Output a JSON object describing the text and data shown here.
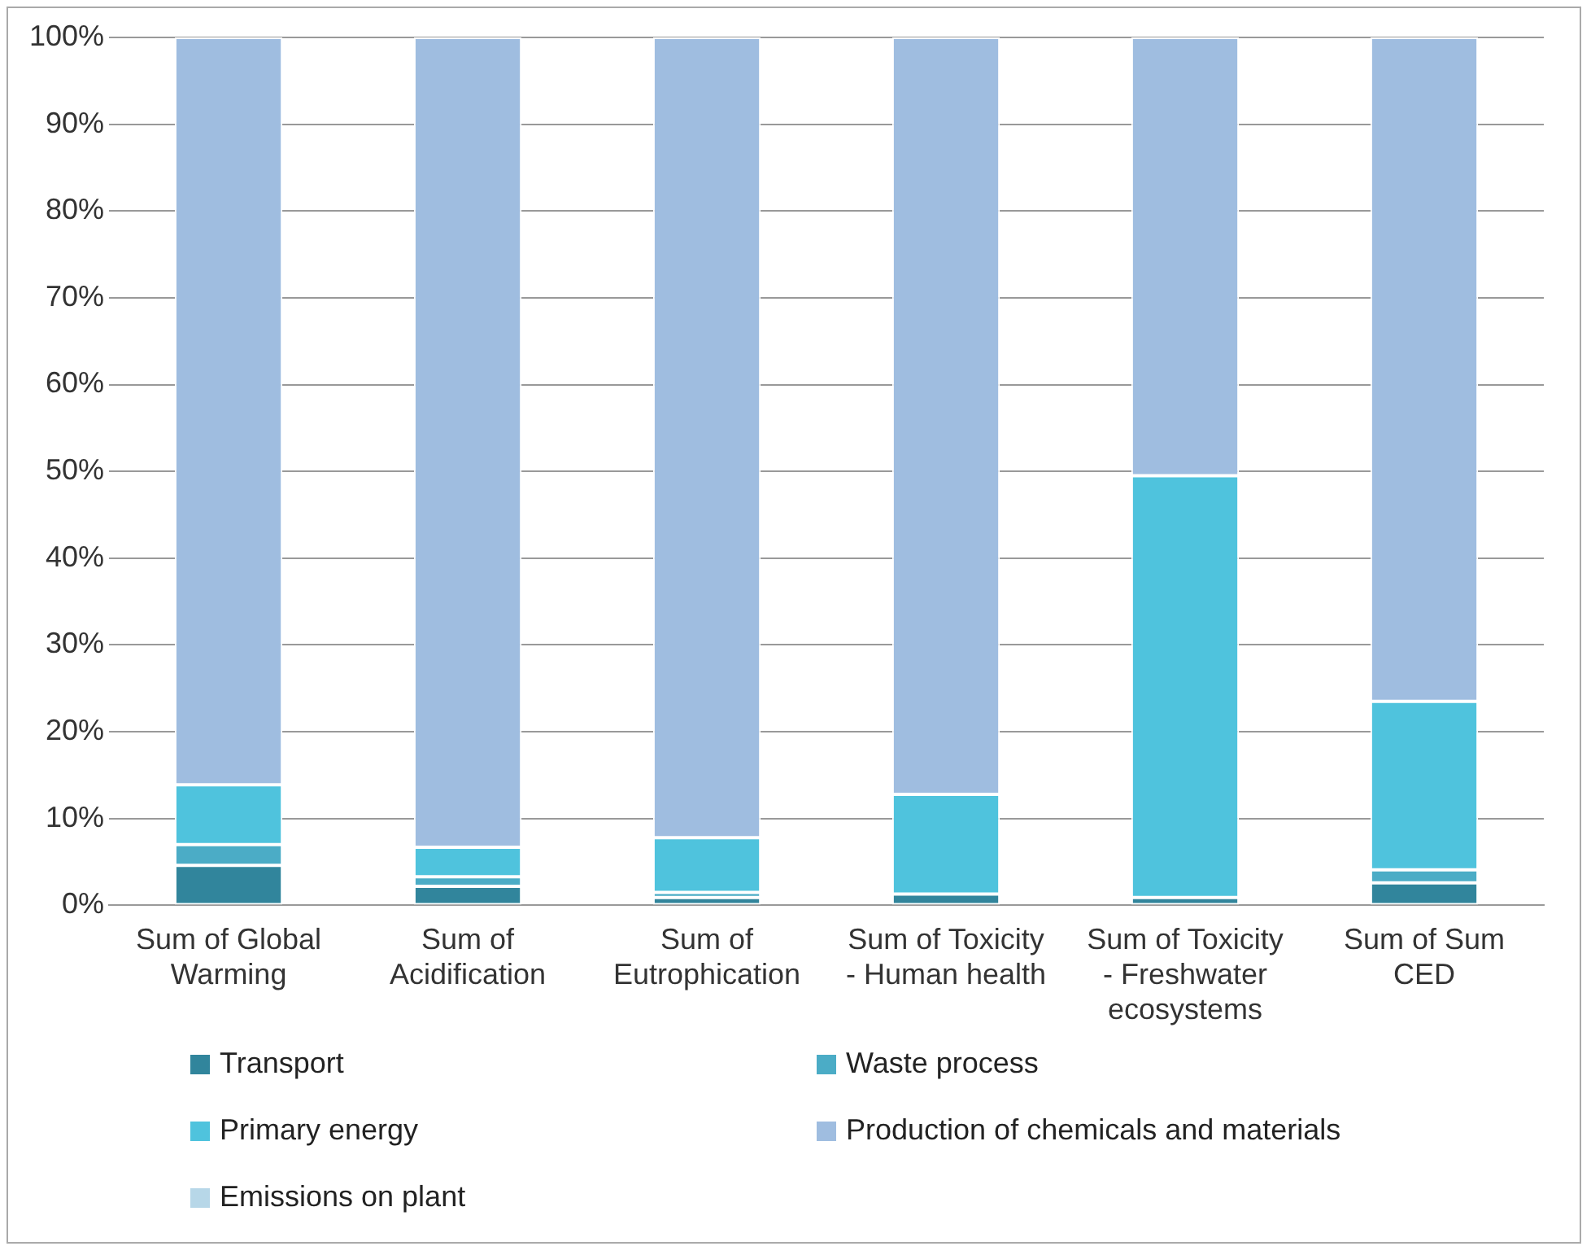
{
  "chart_data": {
    "type": "bar",
    "stacked": true,
    "categories": [
      "Sum of Global Warming",
      "Sum of Acidification",
      "Sum of Eutrophication",
      "Sum of Toxicity - Human health",
      "Sum of Toxicity - Freshwater ecosystems",
      "Sum of Sum CED"
    ],
    "series": [
      {
        "name": "Transport",
        "color": "#31859c",
        "values": [
          4.6,
          2.2,
          0.9,
          1.3,
          0.9,
          2.6
        ]
      },
      {
        "name": "Waste process",
        "color": "#4bacc6",
        "values": [
          2.4,
          1.1,
          0.6,
          0,
          0,
          1.5
        ]
      },
      {
        "name": "Primary energy",
        "color": "#4fc3dd",
        "values": [
          6.9,
          3.4,
          6.3,
          11.5,
          48.6,
          19.4
        ]
      },
      {
        "name": "Production of chemicals and materials",
        "color": "#9fbde0",
        "values": [
          86.1,
          93.3,
          92.2,
          87.2,
          50.5,
          76.5
        ]
      },
      {
        "name": "Emissions on plant",
        "color": "#b7d7e8",
        "values": [
          0,
          0,
          0,
          0,
          0,
          0
        ]
      }
    ],
    "ylim": [
      0,
      100
    ],
    "yticks": [
      {
        "value": 0,
        "label": "0%"
      },
      {
        "value": 10,
        "label": "10%"
      },
      {
        "value": 20,
        "label": "20%"
      },
      {
        "value": 30,
        "label": "30%"
      },
      {
        "value": 40,
        "label": "40%"
      },
      {
        "value": 50,
        "label": "50%"
      },
      {
        "value": 60,
        "label": "60%"
      },
      {
        "value": 70,
        "label": "70%"
      },
      {
        "value": 80,
        "label": "80%"
      },
      {
        "value": 90,
        "label": "90%"
      },
      {
        "value": 100,
        "label": "100%"
      }
    ],
    "grid": "y",
    "legend": "bottom"
  }
}
